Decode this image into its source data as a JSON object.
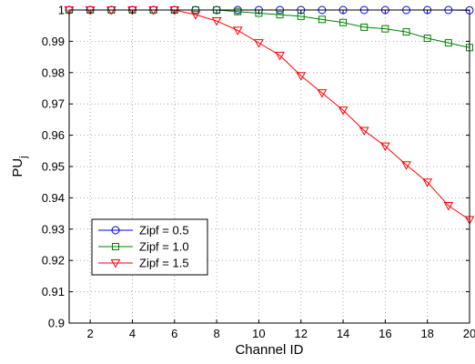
{
  "chart_data": {
    "type": "line",
    "title": "",
    "xlabel": "Channel ID",
    "ylabel": "PU",
    "ylabel_subscript": "j",
    "xlim": [
      1,
      20
    ],
    "ylim": [
      0.9,
      1.0
    ],
    "xticks": [
      2,
      4,
      6,
      8,
      10,
      12,
      14,
      16,
      18,
      20
    ],
    "yticks": [
      0.9,
      0.91,
      0.92,
      0.93,
      0.94,
      0.95,
      0.96,
      0.97,
      0.98,
      0.99,
      1
    ],
    "ytick_labels": [
      "0.9",
      "0.91",
      "0.92",
      "0.93",
      "0.94",
      "0.95",
      "0.96",
      "0.97",
      "0.98",
      "0.99",
      "1"
    ],
    "grid": true,
    "legend_position": "bottom-left",
    "x": [
      1,
      2,
      3,
      4,
      5,
      6,
      7,
      8,
      9,
      10,
      11,
      12,
      13,
      14,
      15,
      16,
      17,
      18,
      19,
      20
    ],
    "series": [
      {
        "name": "Zipf = 0.5",
        "color": "#0000ff",
        "marker": "circle",
        "values": [
          1.0,
          1.0,
          1.0,
          1.0,
          1.0,
          1.0,
          1.0,
          1.0,
          1.0,
          1.0,
          1.0,
          1.0,
          1.0,
          1.0,
          1.0,
          1.0,
          1.0,
          1.0,
          1.0,
          0.9999
        ]
      },
      {
        "name": "Zipf = 1.0",
        "color": "#008000",
        "marker": "square",
        "values": [
          1.0,
          1.0,
          1.0,
          1.0,
          1.0,
          1.0,
          1.0,
          1.0,
          0.9995,
          0.999,
          0.9985,
          0.998,
          0.997,
          0.996,
          0.9945,
          0.994,
          0.993,
          0.991,
          0.9895,
          0.988
        ]
      },
      {
        "name": "Zipf = 1.5",
        "color": "#ff0000",
        "marker": "triangle-down",
        "values": [
          1.0,
          1.0,
          1.0,
          1.0,
          1.0,
          1.0,
          0.9985,
          0.9965,
          0.9935,
          0.9895,
          0.9855,
          0.979,
          0.9735,
          0.968,
          0.9615,
          0.9565,
          0.9505,
          0.945,
          0.9375,
          0.933
        ]
      }
    ]
  }
}
